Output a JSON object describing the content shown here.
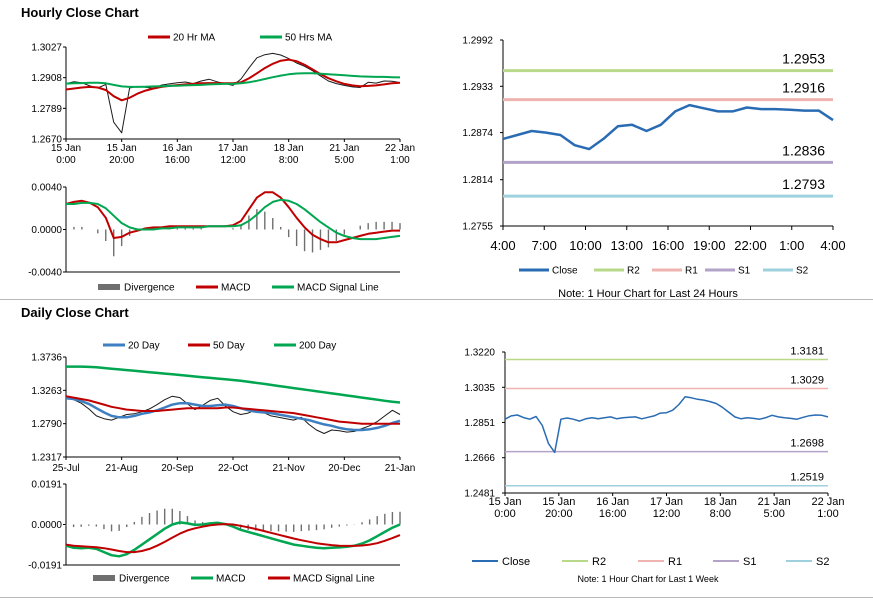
{
  "sections": {
    "hourly_title": "Hourly Close Chart",
    "daily_title": "Daily Close Chart"
  },
  "colors": {
    "red": "#c00000",
    "green": "#00a650",
    "blue": "#3d7fc1",
    "gray": "#6f6f6f",
    "black": "#1a1a1a",
    "close_blue": "#2a6cb3",
    "r2": "#b9d98a",
    "r1": "#efb3b0",
    "s1": "#b3a3c9",
    "s2": "#9fd0de"
  },
  "chart_data": [
    {
      "id": "hourly_price",
      "type": "line",
      "legend": [
        "20 Hr MA",
        "50 Hrs MA"
      ],
      "y_ticks": [
        "1.3027",
        "1.2908",
        "1.2789",
        "1.2670"
      ],
      "ylim": [
        1.267,
        1.3027
      ],
      "x_ticks": [
        [
          "15 Jan",
          "0:00"
        ],
        [
          "15 Jan",
          "20:00"
        ],
        [
          "16 Jan",
          "16:00"
        ],
        [
          "17 Jan",
          "12:00"
        ],
        [
          "18 Jan",
          "8:00"
        ],
        [
          "21 Jan",
          "5:00"
        ],
        [
          "22 Jan",
          "1:00"
        ]
      ],
      "series": [
        {
          "name": "Close",
          "values": [
            1.2885,
            1.2892,
            1.2888,
            1.2876,
            1.2868,
            1.2882,
            1.2735,
            1.2694,
            1.2868,
            1.2874,
            1.2871,
            1.2866,
            1.2879,
            1.2884,
            1.2888,
            1.2891,
            1.2885,
            1.2895,
            1.2902,
            1.2892,
            1.2885,
            1.2878,
            1.2903,
            1.2945,
            1.2985,
            1.2997,
            1.3002,
            1.2996,
            1.2982,
            1.2965,
            1.2952,
            1.2935,
            1.2915,
            1.2895,
            1.2885,
            1.2878,
            1.2872,
            1.287,
            1.289,
            1.2887,
            1.2895,
            1.2894,
            1.2889
          ]
        },
        {
          "name": "20 Hr MA",
          "values": [
            1.2862,
            1.2866,
            1.287,
            1.2872,
            1.287,
            1.286,
            1.2836,
            1.282,
            1.283,
            1.2846,
            1.2858,
            1.2866,
            1.2872,
            1.2876,
            1.2879,
            1.2882,
            1.2884,
            1.2886,
            1.2887,
            1.2887,
            1.2886,
            1.2886,
            1.289,
            1.2905,
            1.2925,
            1.2945,
            1.2962,
            1.2974,
            1.2978,
            1.2972,
            1.2958,
            1.294,
            1.2922,
            1.2906,
            1.2894,
            1.2884,
            1.2878,
            1.2875,
            1.2876,
            1.2878,
            1.2882,
            1.2886,
            1.2888
          ]
        },
        {
          "name": "50 Hrs MA",
          "values": [
            1.2885,
            1.2886,
            1.2887,
            1.2888,
            1.2888,
            1.2886,
            1.288,
            1.2874,
            1.2872,
            1.2872,
            1.2873,
            1.2874,
            1.2875,
            1.2876,
            1.2877,
            1.2878,
            1.2879,
            1.288,
            1.2882,
            1.2883,
            1.2884,
            1.2884,
            1.2886,
            1.289,
            1.2896,
            1.2903,
            1.291,
            1.2916,
            1.2921,
            1.2924,
            1.2925,
            1.2925,
            1.2923,
            1.2921,
            1.2919,
            1.2917,
            1.2915,
            1.2913,
            1.2912,
            1.2911,
            1.2911,
            1.291,
            1.2909
          ]
        }
      ]
    },
    {
      "id": "hourly_macd",
      "type": "line",
      "legend": [
        "Divergence",
        "MACD",
        "MACD Signal Line"
      ],
      "y_ticks": [
        "0.0040",
        "0.0000",
        "-0.0040"
      ],
      "ylim": [
        -0.004,
        0.004
      ],
      "series": [
        {
          "name": "MACD",
          "values": [
            0.0024,
            0.0026,
            0.0027,
            0.0025,
            0.0021,
            0.0011,
            -0.0008,
            -0.0007,
            -0.0003,
            -0.0001,
            0.0001,
            0.0002,
            0.0002,
            0.0003,
            0.0003,
            0.0003,
            0.0003,
            0.0003,
            0.0003,
            0.0003,
            0.0003,
            0.0004,
            0.0008,
            0.0019,
            0.003,
            0.0035,
            0.0035,
            0.003,
            0.0021,
            0.0011,
            0.0002,
            -0.0005,
            -0.0009,
            -0.0012,
            -0.0012,
            -0.001,
            -0.0008,
            -0.0006,
            -0.0004,
            -0.0003,
            -0.0002,
            -0.0001,
            -0.0001
          ]
        },
        {
          "name": "MACD Signal Line",
          "values": [
            0.0024,
            0.0024,
            0.0025,
            0.0025,
            0.0024,
            0.002,
            0.0013,
            0.0006,
            0.0002,
            0.0,
            0.0,
            0.0,
            0.0001,
            0.0001,
            0.0002,
            0.0002,
            0.0002,
            0.0002,
            0.0003,
            0.0003,
            0.0003,
            0.0003,
            0.0004,
            0.0008,
            0.0014,
            0.0021,
            0.0026,
            0.0028,
            0.0027,
            0.0024,
            0.0019,
            0.0013,
            0.0007,
            0.0002,
            -0.0003,
            -0.0006,
            -0.0008,
            -0.0009,
            -0.0009,
            -0.0009,
            -0.0008,
            -0.0007,
            -0.0006
          ]
        }
      ]
    },
    {
      "id": "hourly_pivots",
      "type": "line",
      "y_ticks": [
        "1.2992",
        "1.2933",
        "1.2874",
        "1.2814",
        "1.2755"
      ],
      "ylim": [
        1.2755,
        1.2992
      ],
      "x_ticks": [
        "4:00",
        "7:00",
        "10:00",
        "13:00",
        "16:00",
        "19:00",
        "22:00",
        "1:00",
        "4:00"
      ],
      "legend": [
        "Close",
        "R2",
        "R1",
        "S1",
        "S2"
      ],
      "levels": {
        "R2": "1.2953",
        "R1": "1.2916",
        "S1": "1.2836",
        "S2": "1.2793"
      },
      "series": [
        {
          "name": "Close",
          "values": [
            1.2866,
            1.2871,
            1.2876,
            1.2874,
            1.2871,
            1.2858,
            1.2853,
            1.2866,
            1.2882,
            1.2884,
            1.2876,
            1.2884,
            1.2901,
            1.2909,
            1.2905,
            1.2901,
            1.2901,
            1.2906,
            1.2904,
            1.2904,
            1.2903,
            1.2902,
            1.2902,
            1.289
          ]
        }
      ],
      "note": "Note: 1 Hour Chart for Last 24 Hours"
    },
    {
      "id": "daily_price",
      "type": "line",
      "legend": [
        "20 Day",
        "50 Day",
        "200 Day"
      ],
      "y_ticks": [
        "1.3736",
        "1.3263",
        "1.2790",
        "1.2317"
      ],
      "ylim": [
        1.2317,
        1.3736
      ],
      "x_ticks": [
        "25-Jul",
        "21-Aug",
        "20-Sep",
        "22-Oct",
        "21-Nov",
        "20-Dec",
        "21-Jan"
      ],
      "series": [
        {
          "name": "Close",
          "values": [
            1.318,
            1.313,
            1.308,
            1.3,
            1.29,
            1.286,
            1.284,
            1.288,
            1.292,
            1.293,
            1.296,
            1.3,
            1.306,
            1.313,
            1.318,
            1.316,
            1.307,
            1.299,
            1.305,
            1.312,
            1.315,
            1.304,
            1.296,
            1.292,
            1.294,
            1.299,
            1.295,
            1.29,
            1.288,
            1.286,
            1.284,
            1.288,
            1.278,
            1.27,
            1.265,
            1.27,
            1.269,
            1.267,
            1.268,
            1.272,
            1.276,
            1.282,
            1.29,
            1.298,
            1.292
          ]
        },
        {
          "name": "20 Day",
          "values": [
            1.315,
            1.314,
            1.311,
            1.307,
            1.301,
            1.295,
            1.29,
            1.288,
            1.288,
            1.29,
            1.293,
            1.295,
            1.298,
            1.302,
            1.306,
            1.308,
            1.308,
            1.306,
            1.304,
            1.304,
            1.305,
            1.306,
            1.304,
            1.301,
            1.298,
            1.296,
            1.295,
            1.294,
            1.292,
            1.29,
            1.288,
            1.286,
            1.284,
            1.281,
            1.278,
            1.276,
            1.273,
            1.271,
            1.27,
            1.27,
            1.271,
            1.273,
            1.276,
            1.28,
            1.283
          ]
        },
        {
          "name": "50 Day",
          "values": [
            1.318,
            1.316,
            1.314,
            1.312,
            1.309,
            1.306,
            1.303,
            1.301,
            1.299,
            1.298,
            1.297,
            1.297,
            1.297,
            1.298,
            1.299,
            1.3,
            1.301,
            1.301,
            1.301,
            1.301,
            1.301,
            1.302,
            1.302,
            1.301,
            1.3,
            1.299,
            1.298,
            1.297,
            1.296,
            1.295,
            1.294,
            1.292,
            1.29,
            1.288,
            1.286,
            1.284,
            1.282,
            1.281,
            1.28,
            1.279,
            1.279,
            1.279,
            1.279,
            1.279,
            1.279
          ]
        },
        {
          "name": "200 Day",
          "values": [
            1.36,
            1.36,
            1.36,
            1.3595,
            1.359,
            1.358,
            1.357,
            1.356,
            1.355,
            1.354,
            1.353,
            1.352,
            1.351,
            1.35,
            1.349,
            1.348,
            1.347,
            1.346,
            1.345,
            1.344,
            1.343,
            1.342,
            1.341,
            1.34,
            1.3385,
            1.337,
            1.3355,
            1.334,
            1.3325,
            1.331,
            1.3295,
            1.328,
            1.3265,
            1.325,
            1.3235,
            1.322,
            1.3205,
            1.319,
            1.3175,
            1.316,
            1.3145,
            1.313,
            1.3115,
            1.31,
            1.309
          ]
        }
      ]
    },
    {
      "id": "daily_macd",
      "type": "line",
      "legend": [
        "Divergence",
        "MACD",
        "MACD Signal Line"
      ],
      "y_ticks": [
        "0.0191",
        "0.0000",
        "-0.0191"
      ],
      "ylim": [
        -0.0191,
        0.0191
      ],
      "series": [
        {
          "name": "MACD",
          "values": [
            -0.01,
            -0.011,
            -0.0112,
            -0.011,
            -0.0115,
            -0.013,
            -0.0145,
            -0.015,
            -0.014,
            -0.012,
            -0.0095,
            -0.007,
            -0.0045,
            -0.002,
            0.0,
            0.001,
            0.0005,
            -0.0002,
            0.0,
            0.0005,
            0.0008,
            0.0002,
            -0.001,
            -0.0025,
            -0.0035,
            -0.0045,
            -0.0055,
            -0.0065,
            -0.0075,
            -0.0085,
            -0.0095,
            -0.01,
            -0.0105,
            -0.011,
            -0.0112,
            -0.011,
            -0.0108,
            -0.0105,
            -0.01,
            -0.009,
            -0.0075,
            -0.0055,
            -0.0035,
            -0.0015,
            0.0
          ]
        },
        {
          "name": "MACD Signal Line",
          "values": [
            -0.0095,
            -0.01,
            -0.0103,
            -0.0105,
            -0.0107,
            -0.0112,
            -0.0118,
            -0.0125,
            -0.013,
            -0.013,
            -0.0125,
            -0.0115,
            -0.01,
            -0.0082,
            -0.0062,
            -0.0043,
            -0.0028,
            -0.0018,
            -0.001,
            -0.0004,
            0.0,
            0.0002,
            0.0,
            -0.0006,
            -0.0013,
            -0.0021,
            -0.003,
            -0.0039,
            -0.0048,
            -0.0057,
            -0.0066,
            -0.0074,
            -0.0081,
            -0.0088,
            -0.0093,
            -0.0097,
            -0.01,
            -0.0101,
            -0.0101,
            -0.0099,
            -0.0095,
            -0.0088,
            -0.0077,
            -0.0064,
            -0.005
          ]
        }
      ]
    },
    {
      "id": "weekly_pivots",
      "type": "line",
      "y_ticks": [
        "1.3220",
        "1.3035",
        "1.2851",
        "1.2666",
        "1.2481"
      ],
      "ylim": [
        1.2481,
        1.322
      ],
      "x_ticks": [
        [
          "15 Jan",
          "0:00"
        ],
        [
          "15 Jan",
          "20:00"
        ],
        [
          "16 Jan",
          "16:00"
        ],
        [
          "17 Jan",
          "12:00"
        ],
        [
          "18 Jan",
          "8:00"
        ],
        [
          "21 Jan",
          "5:00"
        ],
        [
          "22 Jan",
          "1:00"
        ]
      ],
      "legend": [
        "Close",
        "R2",
        "R1",
        "S1",
        "S2"
      ],
      "levels": {
        "R2": "1.3181",
        "R1": "1.3029",
        "S1": "1.2698",
        "S2": "1.2519"
      },
      "series": [
        {
          "name": "Close",
          "values": [
            1.2868,
            1.2885,
            1.289,
            1.2876,
            1.2868,
            1.2882,
            1.2835,
            1.274,
            1.2694,
            1.2868,
            1.2874,
            1.2868,
            1.2858,
            1.287,
            1.2875,
            1.287,
            1.2875,
            1.288,
            1.287,
            1.2875,
            1.2878,
            1.288,
            1.287,
            1.2878,
            1.2885,
            1.29,
            1.2902,
            1.2915,
            1.2945,
            1.2985,
            1.298,
            1.2972,
            1.2968,
            1.296,
            1.295,
            1.293,
            1.2905,
            1.288,
            1.287,
            1.2875,
            1.2872,
            1.2868,
            1.2876,
            1.2888,
            1.288,
            1.2875,
            1.2872,
            1.2868,
            1.2878,
            1.2886,
            1.289,
            1.2888,
            1.288
          ]
        }
      ],
      "note": "Note: 1 Hour Chart for Last 1 Week"
    }
  ]
}
